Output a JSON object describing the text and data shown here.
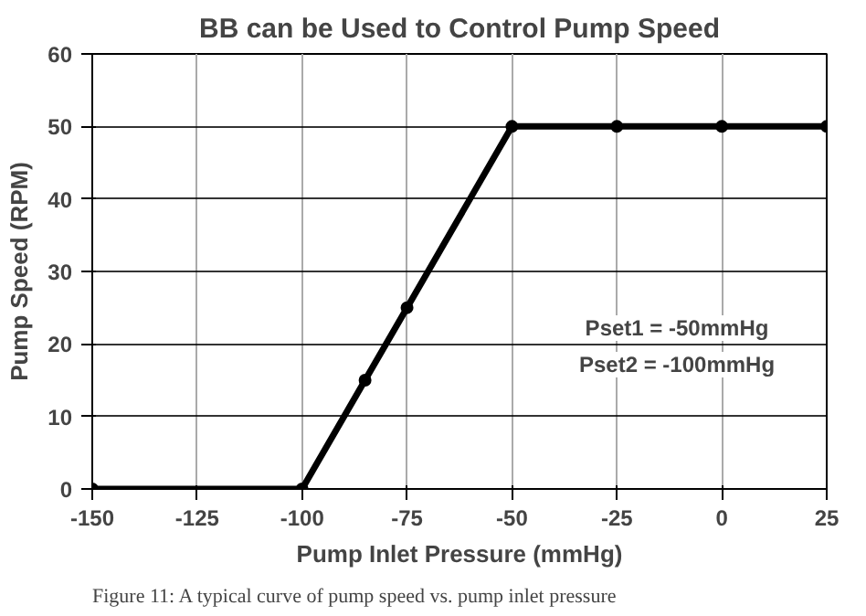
{
  "chart_data": {
    "type": "line",
    "title": "BB can be Used to Control Pump Speed",
    "xlabel": "Pump Inlet Pressure (mmHg)",
    "ylabel": "Pump Speed (RPM)",
    "x": [
      -150,
      -100,
      -85,
      -75,
      -50,
      -25,
      0,
      25
    ],
    "series": [
      {
        "color": "#000000",
        "values": [
          0,
          0,
          15,
          25,
          50,
          50,
          50,
          50
        ]
      }
    ],
    "xlim": [
      -150,
      25
    ],
    "ylim": [
      0,
      60
    ],
    "xticks": [
      -150,
      -125,
      -100,
      -75,
      -50,
      -25,
      0,
      25
    ],
    "yticks": [
      0,
      10,
      20,
      30,
      40,
      50,
      60
    ],
    "grid": true,
    "marker": "circle",
    "line_style": "solid",
    "annotations": [
      "Pset1 = -50mmHg",
      "Pset2 = -100mmHg",
      "Figure 11: A typical curve of pump speed vs. pump inlet pressure"
    ]
  }
}
